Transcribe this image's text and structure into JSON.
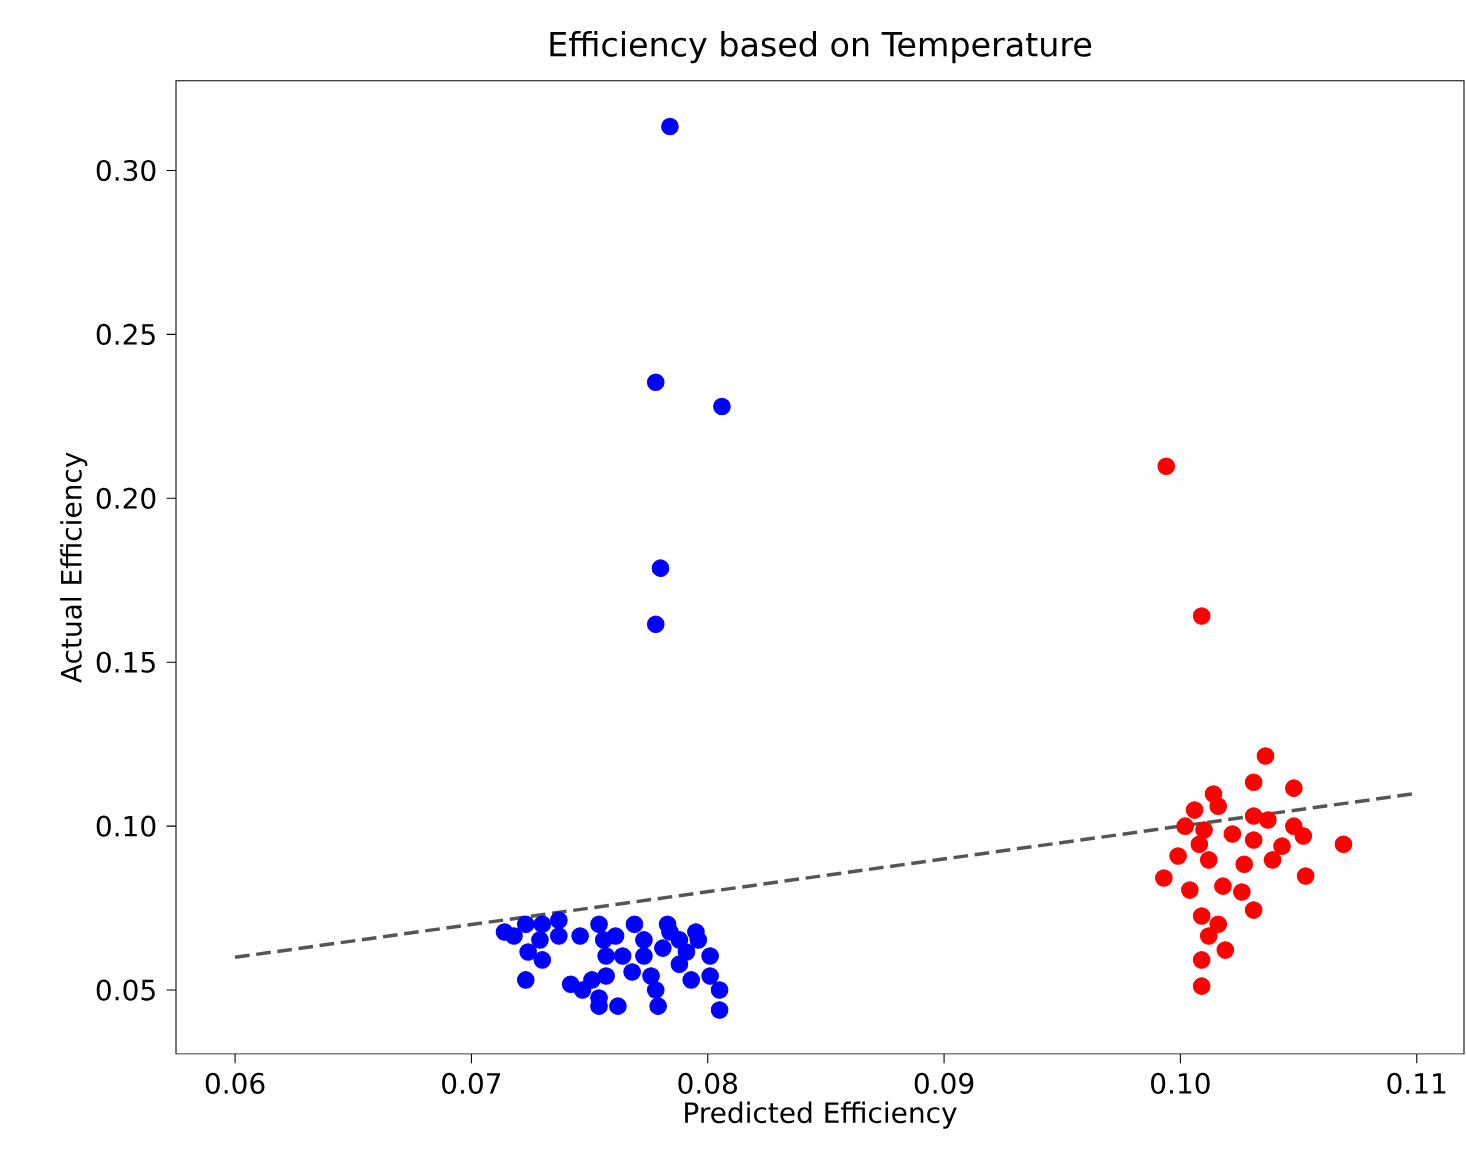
{
  "chart_data": {
    "type": "scatter",
    "title": "Efficiency based on Temperature",
    "xlabel": "Predicted Efficiency",
    "ylabel": "Actual Efficiency",
    "xlim": [
      0.0575,
      0.112
    ],
    "ylim": [
      0.0305,
      0.3274
    ],
    "xticks": [
      0.06,
      0.07,
      0.08,
      0.09,
      {
        "value": 0.1,
        "label": "0.10"
      },
      0.11
    ],
    "yticks": [
      0.05,
      {
        "value": 0.1,
        "label": "0.10"
      },
      0.15,
      {
        "value": 0.2,
        "label": "0.20"
      },
      0.25,
      {
        "value": 0.3,
        "label": "0.30"
      }
    ],
    "grid": false,
    "series": [
      {
        "color": "#0000ff",
        "marker": "circle",
        "x": [
          0.0784,
          0.0778,
          0.0806,
          0.078,
          0.0778,
          0.0714,
          0.0718,
          0.0723,
          0.073,
          0.0737,
          0.0724,
          0.073,
          0.0723,
          0.0742,
          0.0747,
          0.0751,
          0.0754,
          0.0757,
          0.0754,
          0.0756,
          0.0757,
          0.0761,
          0.0764,
          0.0768,
          0.0754,
          0.0762,
          0.0769,
          0.0773,
          0.0773,
          0.0776,
          0.0781,
          0.0778,
          0.0779,
          0.0783,
          0.0784,
          0.0788,
          0.0788,
          0.0791,
          0.0793,
          0.0795,
          0.0796,
          0.0801,
          0.0801,
          0.0805,
          0.0805,
          0.0729,
          0.0737,
          0.0746
        ],
        "values": [
          0.3134,
          0.2354,
          0.228,
          0.1787,
          0.1616,
          0.0677,
          0.0665,
          0.0701,
          0.0701,
          0.0713,
          0.0616,
          0.0592,
          0.0531,
          0.0518,
          0.05,
          0.0531,
          0.0476,
          0.0543,
          0.0701,
          0.0653,
          0.0604,
          0.0665,
          0.0604,
          0.0555,
          0.0451,
          0.0451,
          0.0701,
          0.0653,
          0.0604,
          0.0543,
          0.0628,
          0.05,
          0.0451,
          0.0701,
          0.0677,
          0.0653,
          0.0579,
          0.0616,
          0.0531,
          0.0677,
          0.0653,
          0.0604,
          0.0543,
          0.05,
          0.0439,
          0.0653,
          0.0665,
          0.0665
        ]
      },
      {
        "color": "#ff0000",
        "marker": "circle",
        "x": [
          0.0994,
          0.1009,
          0.1069,
          0.1036,
          0.1031,
          0.1048,
          0.1014,
          0.1006,
          0.1016,
          0.1031,
          0.1037,
          0.1048,
          0.1052,
          0.1002,
          0.101,
          0.1022,
          0.0999,
          0.1012,
          0.1027,
          0.1039,
          0.0993,
          0.1004,
          0.1018,
          0.1026,
          0.1031,
          0.1053,
          0.1009,
          0.1016,
          0.1012,
          0.1019,
          0.1009,
          0.1009,
          0.1043,
          0.1008,
          0.1031
        ],
        "values": [
          0.2098,
          0.1641,
          0.0945,
          0.1214,
          0.1134,
          0.1116,
          0.1098,
          0.1049,
          0.1061,
          0.1031,
          0.1019,
          0.1,
          0.097,
          0.1,
          0.0988,
          0.0976,
          0.0909,
          0.0897,
          0.0884,
          0.0897,
          0.0842,
          0.0805,
          0.0817,
          0.0799,
          0.0744,
          0.0848,
          0.0726,
          0.0701,
          0.0665,
          0.0622,
          0.0592,
          0.0512,
          0.0939,
          0.0945,
          0.0958
        ]
      },
      {
        "type": "line",
        "color": "#555555",
        "line_style": "dashed",
        "marker": "none",
        "x": [
          0.06,
          0.11
        ],
        "values": [
          0.06,
          0.11
        ]
      }
    ]
  }
}
